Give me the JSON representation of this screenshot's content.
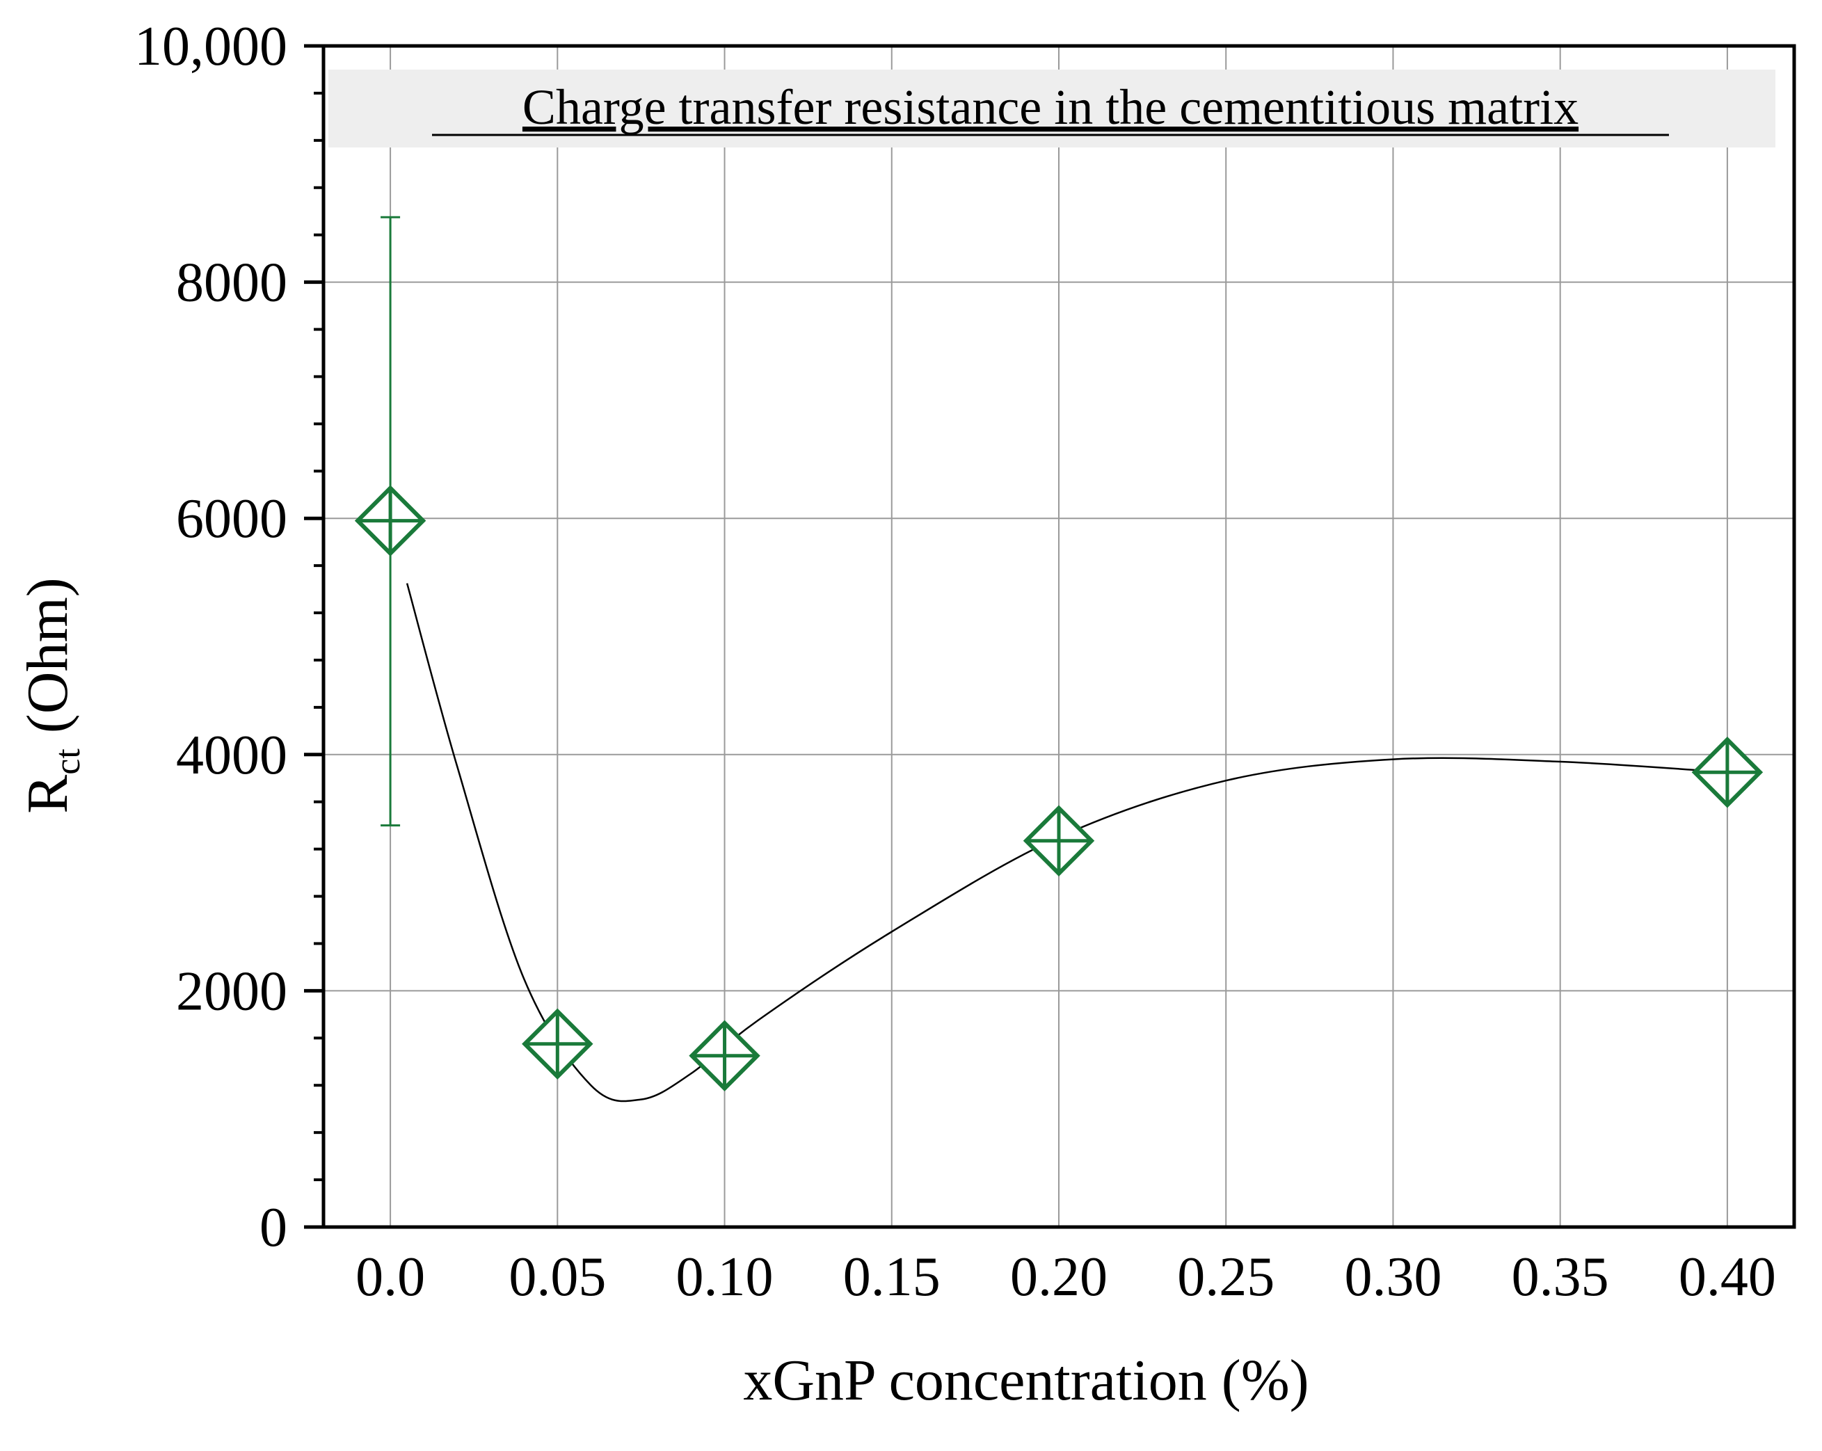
{
  "chart_data": {
    "type": "scatter",
    "title": "Charge transfer resistance in the cementitious matrix",
    "xlabel": "xGnP concentration (%)",
    "ylabel_main": "R",
    "ylabel_sub": "ct",
    "ylabel_unit": "(Ohm)",
    "xlim": [
      -0.02,
      0.42
    ],
    "ylim": [
      0,
      10000
    ],
    "x_ticks": [
      0.0,
      0.05,
      0.1,
      0.15,
      0.2,
      0.25,
      0.3,
      0.35,
      0.4
    ],
    "x_tick_labels": [
      "0.0",
      "0.05",
      "0.10",
      "0.15",
      "0.20",
      "0.25",
      "0.30",
      "0.35",
      "0.40"
    ],
    "y_ticks": [
      0,
      2000,
      4000,
      6000,
      8000,
      10000
    ],
    "y_tick_labels": [
      "0",
      "2000",
      "4000",
      "6000",
      "8000",
      "10,000"
    ],
    "y_minor_step": 400,
    "grid": true,
    "series": [
      {
        "name": "Rct",
        "color": "#1a7a3a",
        "marker": "diamond-plus-x",
        "x": [
          0.0,
          0.05,
          0.1,
          0.2,
          0.4
        ],
        "y": [
          5980,
          1550,
          1450,
          3270,
          3850
        ],
        "error_low": [
          3400,
          1350,
          1250,
          3100,
          3700
        ],
        "error_high": [
          8550,
          1750,
          1650,
          3450,
          4000
        ]
      }
    ],
    "trend_line": {
      "color": "#000000",
      "x": [
        0.005,
        0.02,
        0.04,
        0.06,
        0.075,
        0.09,
        0.11,
        0.15,
        0.2,
        0.25,
        0.3,
        0.35,
        0.4
      ],
      "y": [
        5450,
        3900,
        2100,
        1200,
        1080,
        1300,
        1750,
        2500,
        3300,
        3780,
        3960,
        3940,
        3850
      ]
    }
  }
}
